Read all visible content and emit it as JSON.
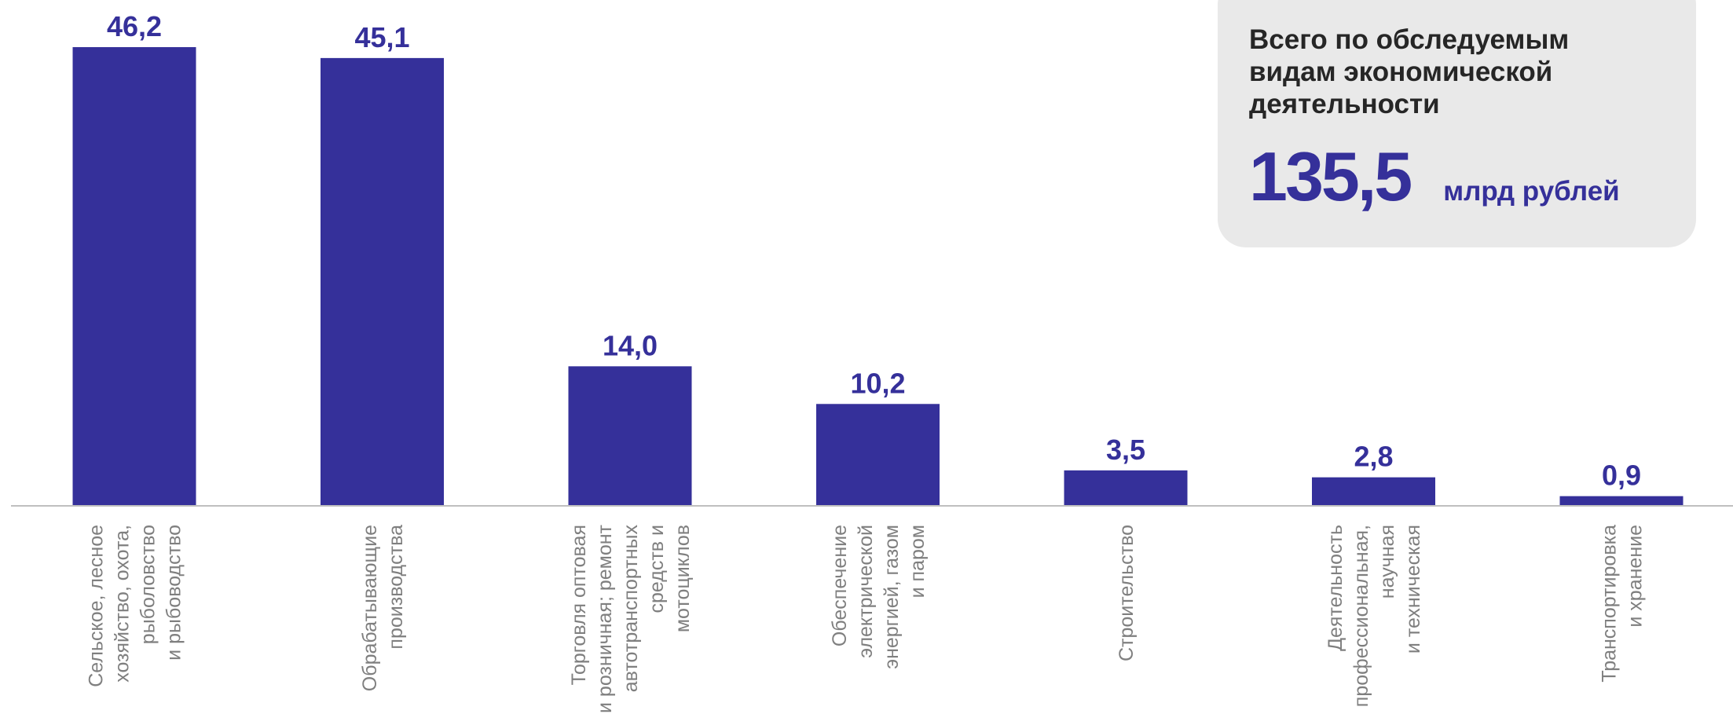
{
  "chart_data": {
    "type": "bar",
    "categories": [
      [
        "Сельское, лесное",
        "хозяйство, охота,",
        "рыболовство",
        "и рыбоводство"
      ],
      [
        "Обрабатывающие",
        "производства"
      ],
      [
        "Торговля оптовая",
        "и розничная; ремонт",
        "автотранспортных",
        "средств и",
        "мотоциклов"
      ],
      [
        "Обеспечение",
        "электрической",
        "энергией, газом",
        "и паром"
      ],
      [
        "Строительство"
      ],
      [
        "Деятельность",
        "профессиональная,",
        "научная",
        "и техническая"
      ],
      [
        "Транспортировка",
        "и  хранение"
      ]
    ],
    "values": [
      46.2,
      45.1,
      14.0,
      10.2,
      3.5,
      2.8,
      0.9
    ],
    "value_labels": [
      "46,2",
      "45,1",
      "14,0",
      "10,2",
      "3,5",
      "2,8",
      "0,9"
    ],
    "ylim": [
      0,
      46.2
    ],
    "grid": false,
    "bar_color": "#35309a",
    "axis_color": "#bfbfbf",
    "label_color": "#7f7f7f"
  },
  "summary": {
    "title": "Всего по обследуемым видам экономической деятельности",
    "value": "135,5",
    "unit": "млрд рублей"
  }
}
